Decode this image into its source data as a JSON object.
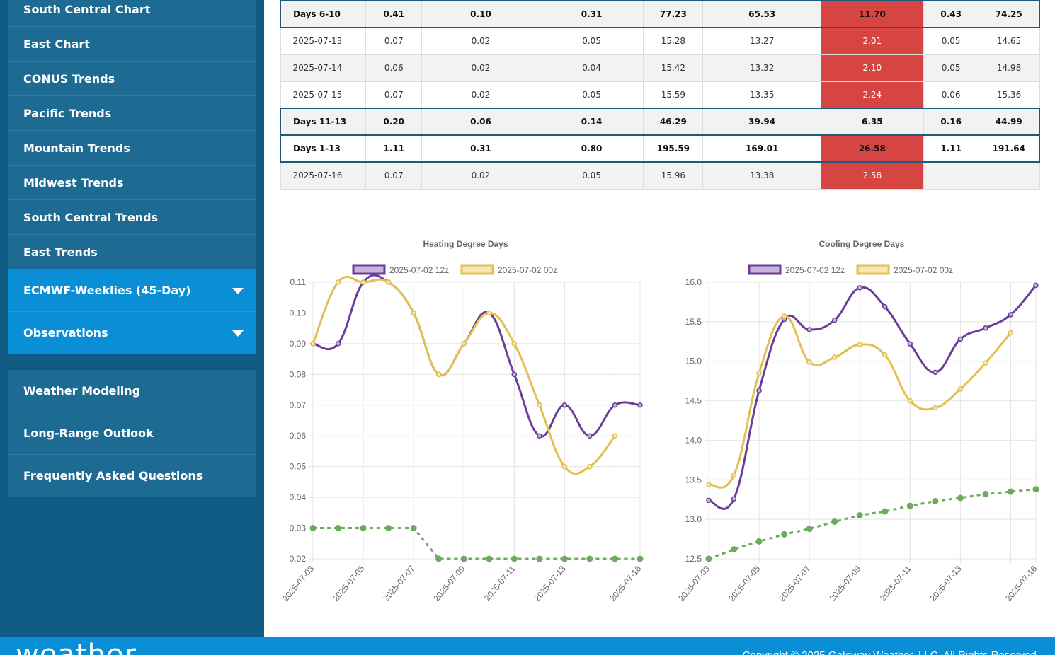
{
  "sidebar": {
    "items": [
      {
        "label": "South Central Chart"
      },
      {
        "label": "East Chart"
      },
      {
        "label": "CONUS Trends"
      },
      {
        "label": "Pacific Trends"
      },
      {
        "label": "Mountain Trends"
      },
      {
        "label": "Midwest Trends"
      },
      {
        "label": "South Central Trends"
      },
      {
        "label": "East Trends"
      }
    ],
    "dropdowns": [
      {
        "label": "ECMWF-Weeklies (45-Day)"
      },
      {
        "label": "Observations"
      }
    ],
    "secondary": [
      {
        "label": "Weather Modeling"
      },
      {
        "label": "Long-Range Outlook"
      },
      {
        "label": "Frequently Asked Questions"
      }
    ]
  },
  "table": {
    "rows": [
      {
        "cells": [
          "Days 6-10",
          "0.41",
          "0.10",
          "0.31",
          "77.23",
          "65.53",
          "11.70",
          "0.43",
          "74.25"
        ],
        "summary": true,
        "red": true
      },
      {
        "cells": [
          "2025-07-13",
          "0.07",
          "0.02",
          "0.05",
          "15.28",
          "13.27",
          "2.01",
          "0.05",
          "14.65"
        ],
        "summary": false,
        "red": true
      },
      {
        "cells": [
          "2025-07-14",
          "0.06",
          "0.02",
          "0.04",
          "15.42",
          "13.32",
          "2.10",
          "0.05",
          "14.98"
        ],
        "summary": false,
        "red": true
      },
      {
        "cells": [
          "2025-07-15",
          "0.07",
          "0.02",
          "0.05",
          "15.59",
          "13.35",
          "2.24",
          "0.06",
          "15.36"
        ],
        "summary": false,
        "red": true
      },
      {
        "cells": [
          "Days 11-13",
          "0.20",
          "0.06",
          "0.14",
          "46.29",
          "39.94",
          "6.35",
          "0.16",
          "44.99"
        ],
        "summary": true,
        "red": false
      },
      {
        "cells": [
          "Days 1-13",
          "1.11",
          "0.31",
          "0.80",
          "195.59",
          "169.01",
          "26.58",
          "1.11",
          "191.64"
        ],
        "summary": true,
        "red": true
      },
      {
        "cells": [
          "2025-07-16",
          "0.07",
          "0.02",
          "0.05",
          "15.96",
          "13.38",
          "2.58",
          "",
          ""
        ],
        "summary": false,
        "red": true
      }
    ],
    "highlight_color": "#d64541"
  },
  "chart_data": [
    {
      "type": "line",
      "title": "Heating Degree Days",
      "xlabel": "",
      "ylabel": "",
      "x": [
        "2025-07-03",
        "2025-07-04",
        "2025-07-05",
        "2025-07-06",
        "2025-07-07",
        "2025-07-08",
        "2025-07-09",
        "2025-07-10",
        "2025-07-11",
        "2025-07-12",
        "2025-07-13",
        "2025-07-14",
        "2025-07-15",
        "2025-07-16"
      ],
      "x_tick_labels": [
        "2025-07-03",
        "2025-07-05",
        "2025-07-07",
        "2025-07-09",
        "2025-07-11",
        "2025-07-13",
        "2025-07-16"
      ],
      "ylim": [
        0.02,
        0.11
      ],
      "y_ticks": [
        "0.02",
        "0.03",
        "0.04",
        "0.05",
        "0.06",
        "0.07",
        "0.08",
        "0.09",
        "0.10",
        "0.11"
      ],
      "grid": true,
      "legend": "top",
      "series": [
        {
          "name": "2025-07-02 12z",
          "color": "#6a3d9a",
          "fill": "#c9b3e0",
          "dashed": false,
          "values": [
            0.09,
            0.09,
            0.11,
            0.11,
            0.1,
            0.08,
            0.09,
            0.1,
            0.08,
            0.06,
            0.07,
            0.06,
            0.07,
            0.07
          ]
        },
        {
          "name": "2025-07-02 00z",
          "color": "#e1c04f",
          "fill": "#f6e7b5",
          "dashed": false,
          "values": [
            0.09,
            0.11,
            0.11,
            0.11,
            0.1,
            0.08,
            0.09,
            0.1,
            0.09,
            0.07,
            0.05,
            0.05,
            0.06,
            null
          ]
        },
        {
          "color": "#6aab5e",
          "dashed": true,
          "values": [
            0.03,
            0.03,
            0.03,
            0.03,
            0.03,
            0.02,
            0.02,
            0.02,
            0.02,
            0.02,
            0.02,
            0.02,
            0.02,
            0.02
          ]
        }
      ]
    },
    {
      "type": "line",
      "title": "Cooling Degree Days",
      "xlabel": "",
      "ylabel": "",
      "x": [
        "2025-07-03",
        "2025-07-04",
        "2025-07-05",
        "2025-07-06",
        "2025-07-07",
        "2025-07-08",
        "2025-07-09",
        "2025-07-10",
        "2025-07-11",
        "2025-07-12",
        "2025-07-13",
        "2025-07-14",
        "2025-07-15",
        "2025-07-16"
      ],
      "x_tick_labels": [
        "2025-07-03",
        "2025-07-05",
        "2025-07-07",
        "2025-07-09",
        "2025-07-11",
        "2025-07-13",
        "2025-07-16"
      ],
      "ylim": [
        12.5,
        16.0
      ],
      "y_ticks": [
        "12.5",
        "13.0",
        "13.5",
        "14.0",
        "14.5",
        "15.0",
        "15.5",
        "16.0"
      ],
      "grid": true,
      "legend": "top",
      "series": [
        {
          "name": "2025-07-02 12z",
          "color": "#6a3d9a",
          "fill": "#c9b3e0",
          "dashed": false,
          "values": [
            13.24,
            13.26,
            14.63,
            15.53,
            15.4,
            15.52,
            15.93,
            15.69,
            15.22,
            14.86,
            15.28,
            15.42,
            15.59,
            15.96
          ]
        },
        {
          "name": "2025-07-02 00z",
          "color": "#e1c04f",
          "fill": "#f6e7b5",
          "dashed": false,
          "values": [
            13.44,
            13.56,
            14.85,
            15.57,
            14.99,
            15.05,
            15.21,
            15.08,
            14.5,
            14.41,
            14.65,
            14.98,
            15.36,
            null
          ]
        },
        {
          "color": "#6aab5e",
          "dashed": true,
          "values": [
            12.5,
            12.62,
            12.72,
            12.81,
            12.88,
            12.97,
            13.05,
            13.1,
            13.17,
            13.23,
            13.27,
            13.32,
            13.35,
            13.38
          ]
        }
      ]
    }
  ],
  "footer": {
    "logo": "weather",
    "copyright": "Copyright © 2025 Gateway Weather, LLC. All Rights Reserved."
  }
}
